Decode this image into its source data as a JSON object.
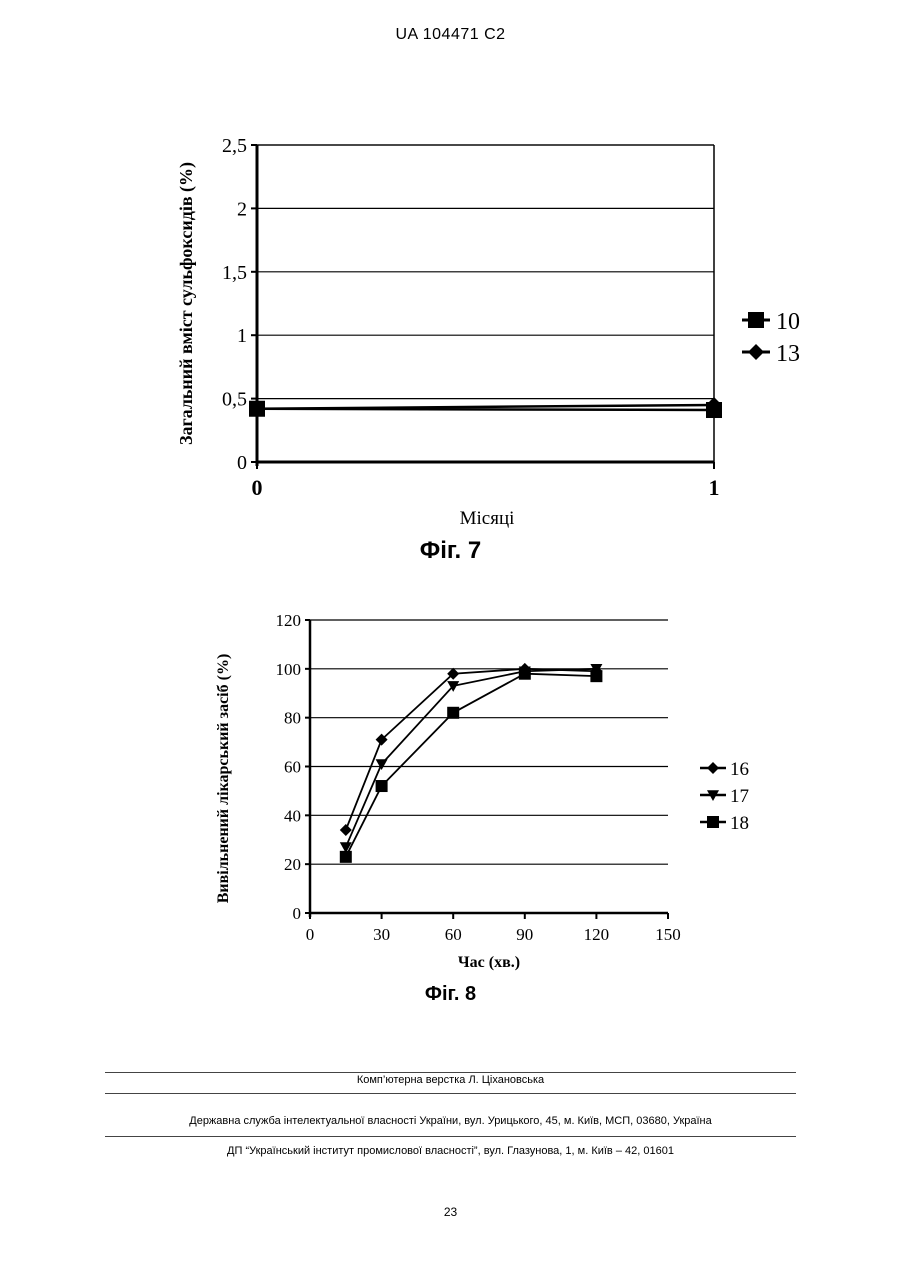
{
  "header": {
    "doc_id": "UA   104471   C2"
  },
  "figures": {
    "fig7_caption": "Фіг. 7",
    "fig8_caption": "Фіг. 8"
  },
  "chart_data": [
    {
      "type": "line",
      "ylabel": "Загальний вміст сульфоксидів (%)",
      "xlabel": "Місяці",
      "x": [
        0,
        1
      ],
      "x_tick_labels": [
        "0",
        "1"
      ],
      "ylim": [
        0,
        2.5
      ],
      "y_tick_labels": [
        "0",
        "0,5",
        "1",
        "1,5",
        "2",
        "2,5"
      ],
      "y_ticks": [
        0,
        0.5,
        1,
        1.5,
        2,
        2.5
      ],
      "grid": true,
      "legend": "right",
      "series": [
        {
          "name": "10",
          "marker": "square",
          "values": [
            0.42,
            0.41
          ]
        },
        {
          "name": "13",
          "marker": "diamond",
          "values": [
            0.42,
            0.45
          ]
        }
      ]
    },
    {
      "type": "line",
      "ylabel": "Вивільнений лікарський засіб (%)",
      "xlabel": "Час (хв.)",
      "xlim": [
        0,
        150
      ],
      "x_ticks": [
        0,
        30,
        60,
        90,
        120,
        150
      ],
      "x_tick_labels": [
        "0",
        "30",
        "60",
        "90",
        "120",
        "150"
      ],
      "ylim": [
        0,
        120
      ],
      "y_ticks": [
        0,
        20,
        40,
        60,
        80,
        100,
        120
      ],
      "y_tick_labels": [
        "0",
        "20",
        "40",
        "60",
        "80",
        "100",
        "120"
      ],
      "grid": true,
      "legend": "right",
      "series": [
        {
          "name": "16",
          "marker": "diamond",
          "x": [
            15,
            30,
            60,
            90,
            120
          ],
          "values": [
            34,
            71,
            98,
            100,
            99
          ]
        },
        {
          "name": "17",
          "marker": "triangle-down",
          "x": [
            15,
            30,
            60,
            90,
            120
          ],
          "values": [
            27,
            61,
            93,
            99,
            100
          ]
        },
        {
          "name": "18",
          "marker": "square",
          "x": [
            15,
            30,
            60,
            90,
            120
          ],
          "values": [
            23,
            52,
            82,
            98,
            97
          ]
        }
      ]
    }
  ],
  "footer": {
    "line1": "Комп’ютерна верстка Л. Ціхановська",
    "line2": "Державна служба інтелектуальної власності України, вул. Урицького, 45, м. Київ, МСП, 03680, Україна",
    "line3": "ДП “Український інститут промислової власності”, вул. Глазунова, 1, м. Київ – 42, 01601"
  },
  "page_number": "23"
}
